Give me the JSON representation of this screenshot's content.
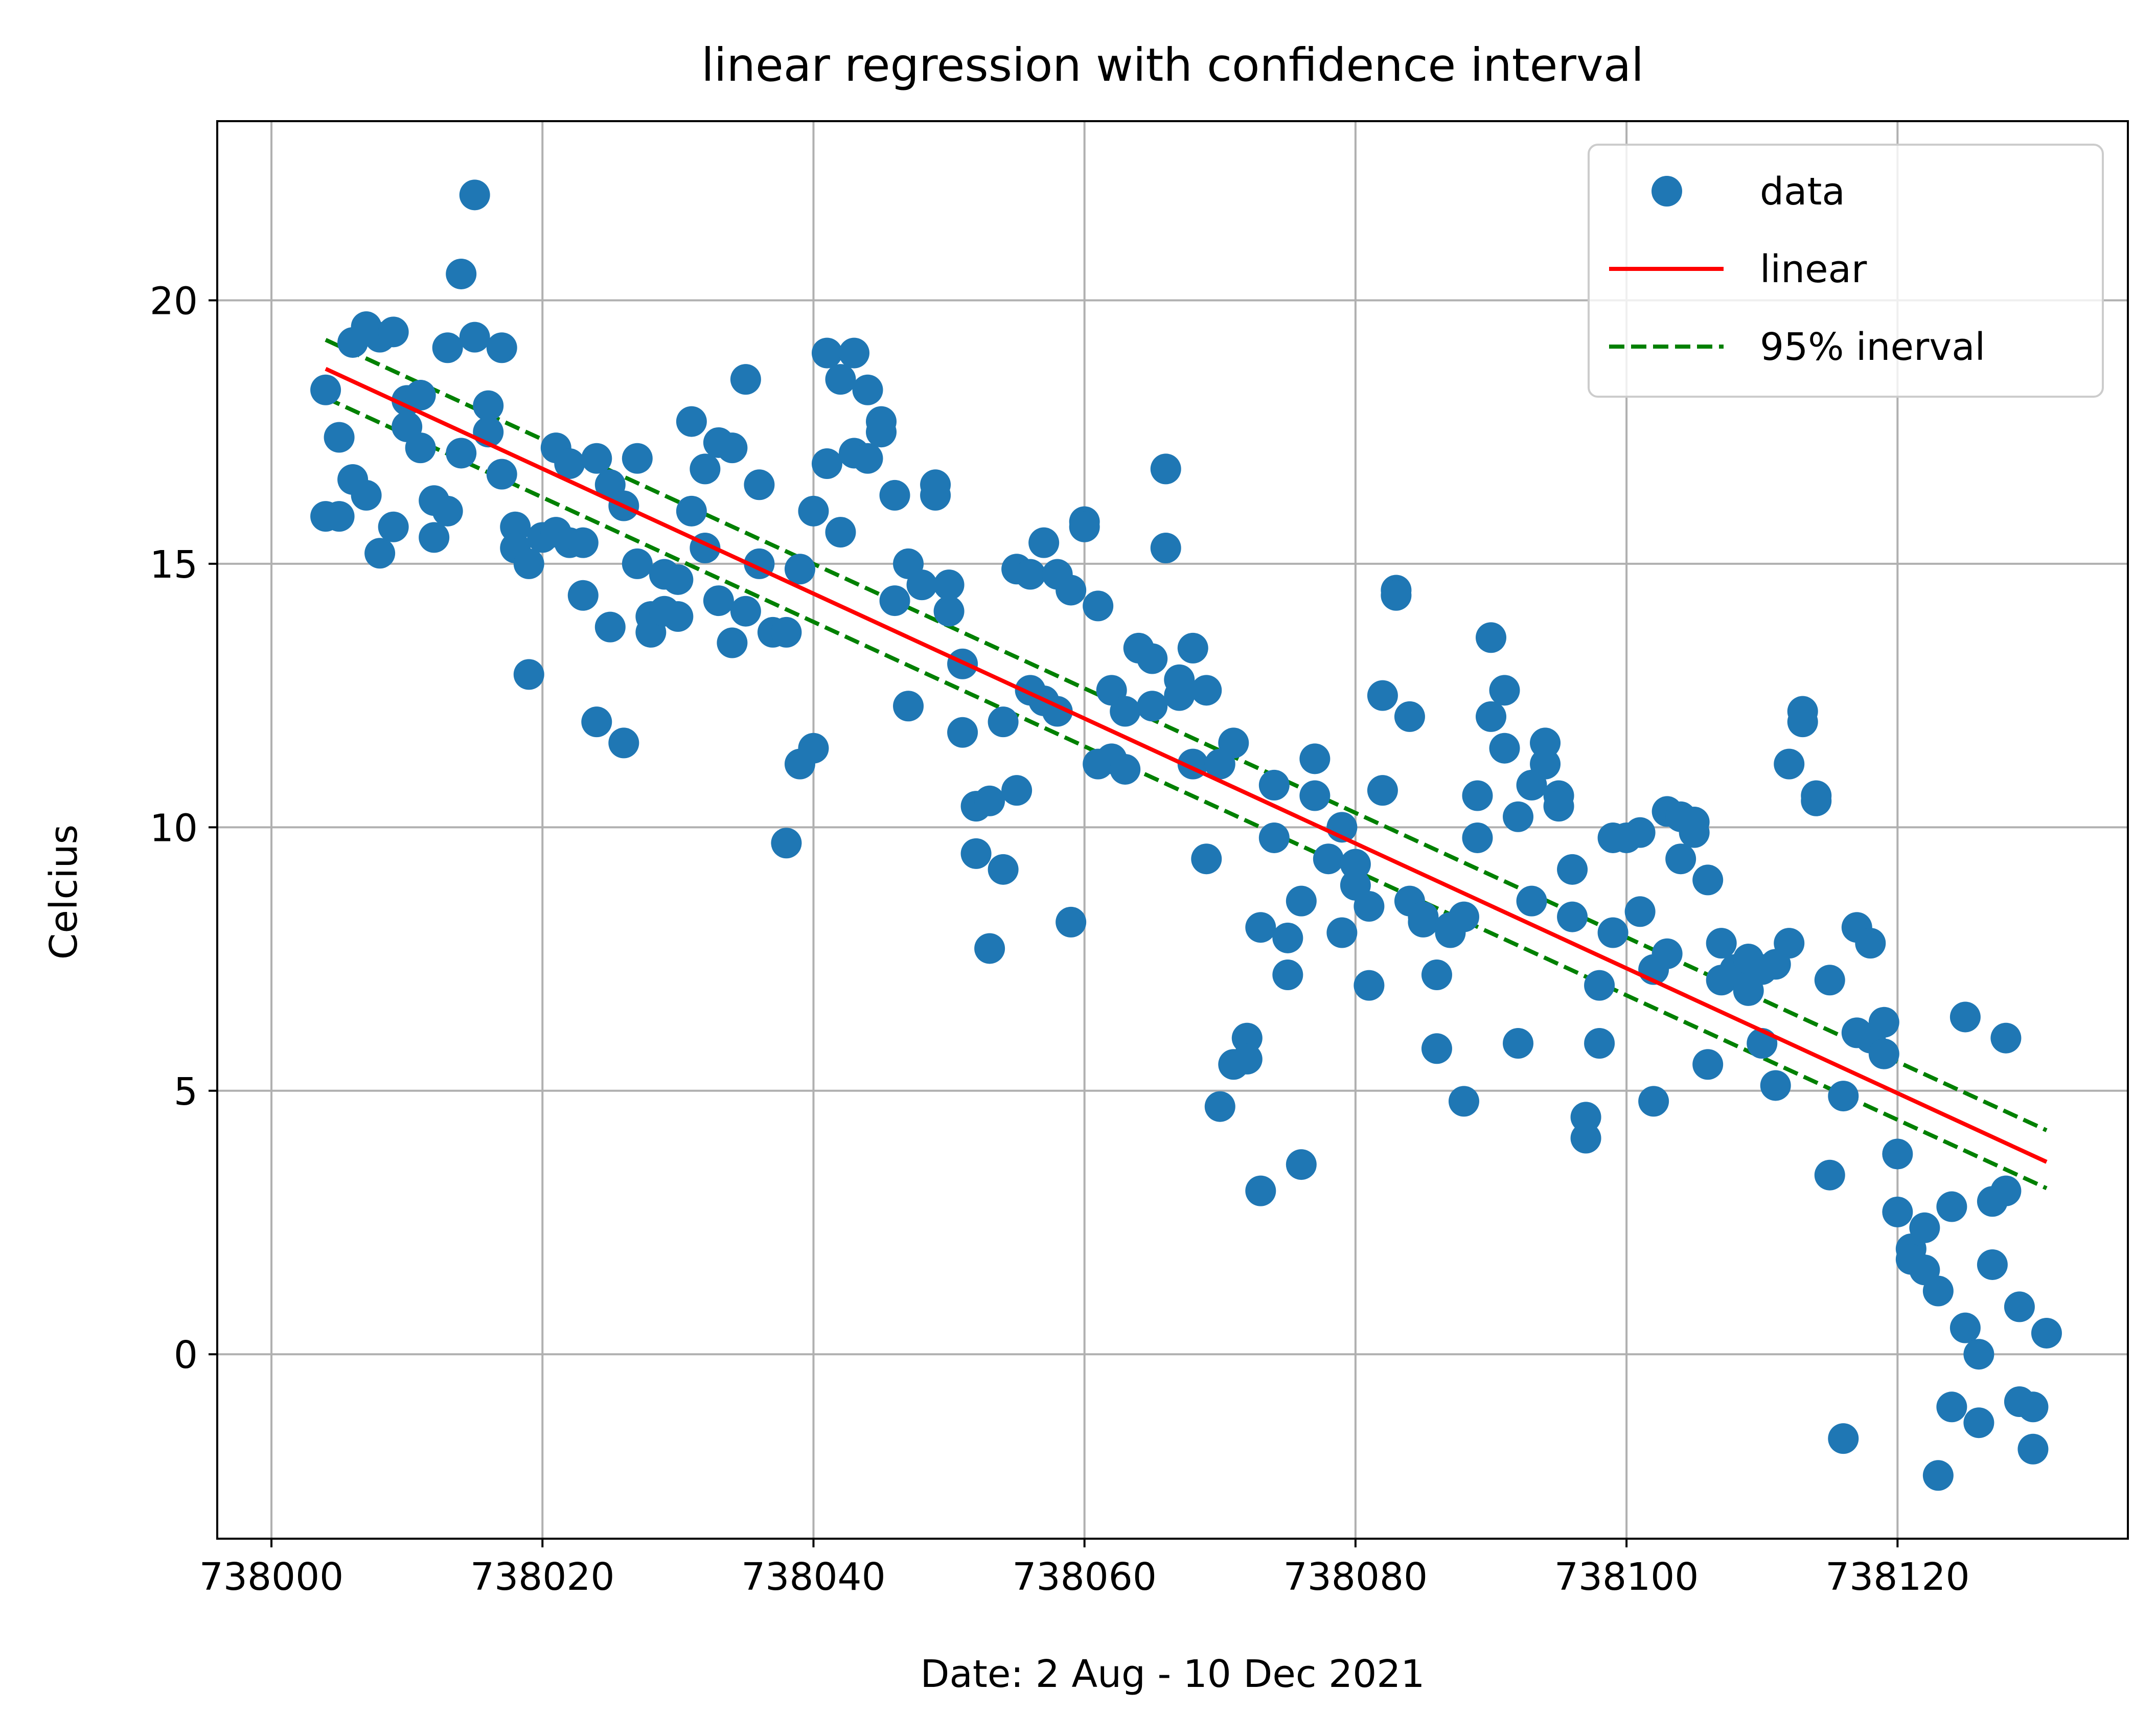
{
  "chart_data": {
    "type": "scatter",
    "title": "linear regression with confidence interval",
    "xlabel": "Date: 2 Aug - 10 Dec 2021",
    "ylabel": "Celcius",
    "xlim": [
      737996,
      738137
    ],
    "ylim": [
      -3.5,
      23.4
    ],
    "x_ticks": [
      738000,
      738020,
      738040,
      738060,
      738080,
      738100,
      738120
    ],
    "y_ticks": [
      0,
      5,
      10,
      15,
      20
    ],
    "grid": true,
    "legend_position": "top-right",
    "legend": {
      "data": "data",
      "linear": "linear",
      "interval": "95% inerval"
    },
    "colors": {
      "data": "#1f77b4",
      "linear": "#ff0000",
      "interval": "#008000"
    },
    "series": [
      {
        "name": "data",
        "points": [
          [
            738004,
            18.3
          ],
          [
            738004,
            15.9
          ],
          [
            738005,
            17.4
          ],
          [
            738005,
            15.9
          ],
          [
            738006,
            19.2
          ],
          [
            738006,
            16.6
          ],
          [
            738007,
            19.5
          ],
          [
            738007,
            16.3
          ],
          [
            738008,
            19.3
          ],
          [
            738008,
            15.2
          ],
          [
            738009,
            19.4
          ],
          [
            738009,
            15.7
          ],
          [
            738010,
            18.1
          ],
          [
            738010,
            17.6
          ],
          [
            738011,
            18.2
          ],
          [
            738011,
            17.2
          ],
          [
            738012,
            16.2
          ],
          [
            738012,
            15.5
          ],
          [
            738013,
            19.1
          ],
          [
            738013,
            16.0
          ],
          [
            738014,
            20.5
          ],
          [
            738014,
            17.1
          ],
          [
            738015,
            22.0
          ],
          [
            738015,
            19.3
          ],
          [
            738016,
            18.0
          ],
          [
            738016,
            17.5
          ],
          [
            738017,
            19.1
          ],
          [
            738017,
            16.7
          ],
          [
            738018,
            15.7
          ],
          [
            738018,
            15.3
          ],
          [
            738019,
            15.0
          ],
          [
            738019,
            12.9
          ],
          [
            738020,
            15.5
          ],
          [
            738021,
            17.2
          ],
          [
            738021,
            15.6
          ],
          [
            738022,
            16.9
          ],
          [
            738022,
            15.4
          ],
          [
            738023,
            15.4
          ],
          [
            738023,
            14.4
          ],
          [
            738024,
            17.0
          ],
          [
            738024,
            12.0
          ],
          [
            738025,
            16.5
          ],
          [
            738025,
            13.8
          ],
          [
            738026,
            16.1
          ],
          [
            738026,
            11.6
          ],
          [
            738027,
            17.0
          ],
          [
            738027,
            15.0
          ],
          [
            738028,
            14.0
          ],
          [
            738028,
            13.7
          ],
          [
            738029,
            14.8
          ],
          [
            738029,
            14.1
          ],
          [
            738030,
            14.7
          ],
          [
            738030,
            14.0
          ],
          [
            738031,
            17.7
          ],
          [
            738031,
            16.0
          ],
          [
            738032,
            16.8
          ],
          [
            738032,
            15.3
          ],
          [
            738033,
            17.3
          ],
          [
            738033,
            14.3
          ],
          [
            738034,
            17.2
          ],
          [
            738034,
            13.5
          ],
          [
            738035,
            18.5
          ],
          [
            738035,
            14.1
          ],
          [
            738036,
            16.5
          ],
          [
            738036,
            15.0
          ],
          [
            738037,
            13.7
          ],
          [
            738038,
            13.7
          ],
          [
            738038,
            9.7
          ],
          [
            738039,
            14.9
          ],
          [
            738039,
            11.2
          ],
          [
            738040,
            16.0
          ],
          [
            738040,
            11.5
          ],
          [
            738041,
            19.0
          ],
          [
            738041,
            16.9
          ],
          [
            738042,
            18.5
          ],
          [
            738042,
            15.6
          ],
          [
            738043,
            19.0
          ],
          [
            738043,
            17.1
          ],
          [
            738044,
            18.3
          ],
          [
            738044,
            17.0
          ],
          [
            738045,
            17.7
          ],
          [
            738045,
            17.5
          ],
          [
            738046,
            16.3
          ],
          [
            738046,
            14.3
          ],
          [
            738047,
            15.0
          ],
          [
            738047,
            12.3
          ],
          [
            738048,
            14.6
          ],
          [
            738049,
            16.5
          ],
          [
            738049,
            16.3
          ],
          [
            738050,
            14.6
          ],
          [
            738050,
            14.1
          ],
          [
            738051,
            13.1
          ],
          [
            738051,
            11.8
          ],
          [
            738052,
            10.4
          ],
          [
            738052,
            9.5
          ],
          [
            738053,
            10.5
          ],
          [
            738053,
            7.7
          ],
          [
            738054,
            12.0
          ],
          [
            738054,
            9.2
          ],
          [
            738055,
            14.9
          ],
          [
            738055,
            10.7
          ],
          [
            738056,
            14.8
          ],
          [
            738056,
            12.6
          ],
          [
            738057,
            15.4
          ],
          [
            738057,
            12.4
          ],
          [
            738058,
            14.8
          ],
          [
            738058,
            12.2
          ],
          [
            738059,
            14.5
          ],
          [
            738059,
            8.2
          ],
          [
            738060,
            15.8
          ],
          [
            738060,
            15.7
          ],
          [
            738061,
            14.2
          ],
          [
            738061,
            11.2
          ],
          [
            738062,
            12.6
          ],
          [
            738062,
            11.3
          ],
          [
            738063,
            12.2
          ],
          [
            738063,
            11.1
          ],
          [
            738064,
            13.4
          ],
          [
            738065,
            13.2
          ],
          [
            738065,
            12.3
          ],
          [
            738066,
            16.8
          ],
          [
            738066,
            15.3
          ],
          [
            738067,
            12.8
          ],
          [
            738067,
            12.5
          ],
          [
            738068,
            13.4
          ],
          [
            738068,
            11.2
          ],
          [
            738069,
            12.6
          ],
          [
            738069,
            9.4
          ],
          [
            738070,
            11.2
          ],
          [
            738070,
            4.7
          ],
          [
            738071,
            11.6
          ],
          [
            738071,
            5.5
          ],
          [
            738072,
            6.0
          ],
          [
            738072,
            5.6
          ],
          [
            738073,
            8.1
          ],
          [
            738073,
            3.1
          ],
          [
            738074,
            10.8
          ],
          [
            738074,
            9.8
          ],
          [
            738075,
            7.9
          ],
          [
            738075,
            7.2
          ],
          [
            738076,
            8.6
          ],
          [
            738076,
            3.6
          ],
          [
            738077,
            11.3
          ],
          [
            738077,
            10.6
          ],
          [
            738078,
            9.4
          ],
          [
            738079,
            10.0
          ],
          [
            738079,
            8.0
          ],
          [
            738080,
            9.3
          ],
          [
            738080,
            8.9
          ],
          [
            738081,
            8.5
          ],
          [
            738081,
            7.0
          ],
          [
            738082,
            12.5
          ],
          [
            738082,
            10.7
          ],
          [
            738083,
            14.5
          ],
          [
            738083,
            14.4
          ],
          [
            738084,
            12.1
          ],
          [
            738084,
            8.6
          ],
          [
            738085,
            8.3
          ],
          [
            738085,
            8.2
          ],
          [
            738086,
            7.2
          ],
          [
            738086,
            5.8
          ],
          [
            738087,
            8.1
          ],
          [
            738087,
            8.0
          ],
          [
            738088,
            8.3
          ],
          [
            738088,
            4.8
          ],
          [
            738089,
            10.6
          ],
          [
            738089,
            9.8
          ],
          [
            738090,
            13.6
          ],
          [
            738090,
            12.1
          ],
          [
            738091,
            12.6
          ],
          [
            738091,
            11.5
          ],
          [
            738092,
            10.2
          ],
          [
            738092,
            5.9
          ],
          [
            738093,
            10.8
          ],
          [
            738093,
            8.6
          ],
          [
            738094,
            11.6
          ],
          [
            738094,
            11.2
          ],
          [
            738095,
            10.6
          ],
          [
            738095,
            10.4
          ],
          [
            738096,
            9.2
          ],
          [
            738096,
            8.3
          ],
          [
            738097,
            4.5
          ],
          [
            738097,
            4.1
          ],
          [
            738098,
            7.0
          ],
          [
            738098,
            5.9
          ],
          [
            738099,
            9.8
          ],
          [
            738099,
            8.0
          ],
          [
            738100,
            9.8
          ],
          [
            738101,
            9.9
          ],
          [
            738101,
            8.4
          ],
          [
            738102,
            7.3
          ],
          [
            738102,
            4.8
          ],
          [
            738103,
            10.3
          ],
          [
            738103,
            7.6
          ],
          [
            738104,
            10.2
          ],
          [
            738104,
            9.4
          ],
          [
            738105,
            10.1
          ],
          [
            738105,
            9.9
          ],
          [
            738106,
            9.0
          ],
          [
            738106,
            5.5
          ],
          [
            738107,
            7.8
          ],
          [
            738107,
            7.1
          ],
          [
            738108,
            7.3
          ],
          [
            738109,
            7.5
          ],
          [
            738109,
            6.9
          ],
          [
            738110,
            7.3
          ],
          [
            738110,
            5.9
          ],
          [
            738111,
            7.4
          ],
          [
            738111,
            5.1
          ],
          [
            738112,
            11.2
          ],
          [
            738112,
            7.8
          ],
          [
            738113,
            12.2
          ],
          [
            738113,
            12.0
          ],
          [
            738114,
            10.6
          ],
          [
            738114,
            10.5
          ],
          [
            738115,
            7.1
          ],
          [
            738115,
            3.4
          ],
          [
            738116,
            4.9
          ],
          [
            738116,
            -1.6
          ],
          [
            738117,
            8.1
          ],
          [
            738117,
            6.1
          ],
          [
            738118,
            7.8
          ],
          [
            738118,
            6.0
          ],
          [
            738119,
            6.3
          ],
          [
            738119,
            5.7
          ],
          [
            738120,
            3.8
          ],
          [
            738120,
            2.7
          ],
          [
            738121,
            2.0
          ],
          [
            738121,
            1.8
          ],
          [
            738122,
            2.4
          ],
          [
            738122,
            1.6
          ],
          [
            738123,
            1.2
          ],
          [
            738123,
            -2.3
          ],
          [
            738124,
            2.8
          ],
          [
            738124,
            -1.0
          ],
          [
            738125,
            6.4
          ],
          [
            738125,
            0.5
          ],
          [
            738126,
            0.0
          ],
          [
            738126,
            -1.3
          ],
          [
            738127,
            2.9
          ],
          [
            738127,
            1.7
          ],
          [
            738128,
            6.0
          ],
          [
            738128,
            3.1
          ],
          [
            738129,
            0.9
          ],
          [
            738129,
            -0.9
          ],
          [
            738130,
            -1.0
          ],
          [
            738130,
            -1.8
          ],
          [
            738131,
            0.4
          ]
        ]
      },
      {
        "name": "linear",
        "line": [
          [
            738004,
            18.7
          ],
          [
            738131,
            3.65
          ]
        ]
      },
      {
        "name": "95% inerval",
        "upper": [
          [
            738004,
            19.25
          ],
          [
            738131,
            4.25
          ]
        ],
        "lower": [
          [
            738004,
            18.15
          ],
          [
            738131,
            3.15
          ]
        ]
      }
    ]
  }
}
